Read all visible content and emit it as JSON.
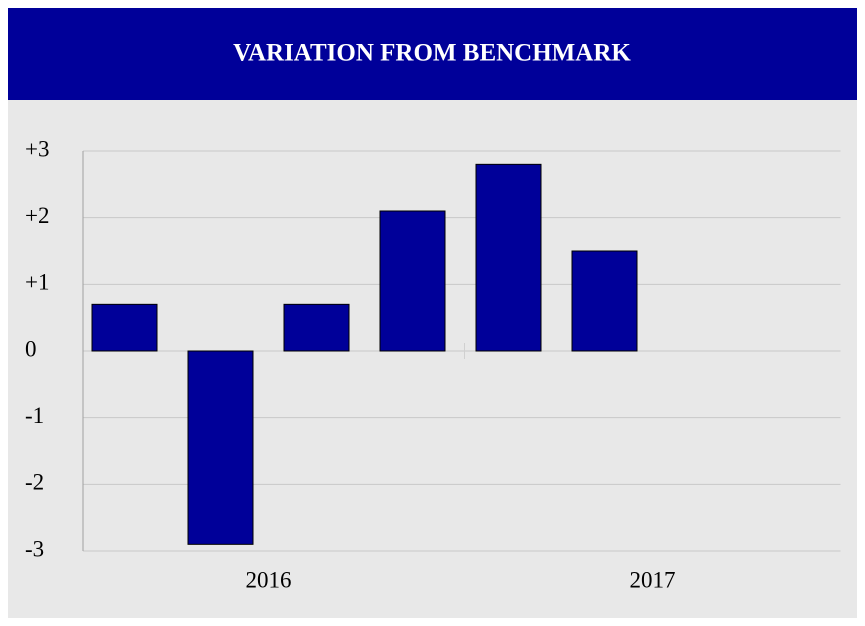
{
  "chart_data": {
    "type": "bar",
    "title": "VARIATION FROM BENCHMARK",
    "categories": [
      null,
      null,
      null,
      null,
      null,
      null,
      null,
      null
    ],
    "x_groups": [
      "2016",
      "2017"
    ],
    "values": [
      0.7,
      -2.9,
      0.7,
      2.1,
      2.8,
      1.5,
      null,
      null
    ],
    "color": "#000099",
    "header_color": "#000099",
    "ylim": [
      -3,
      3
    ],
    "yticks": [
      {
        "value": 3,
        "label": "+3"
      },
      {
        "value": 2,
        "label": "+2"
      },
      {
        "value": 1,
        "label": "+1"
      },
      0,
      -1,
      -2,
      -3
    ],
    "grid": true
  }
}
